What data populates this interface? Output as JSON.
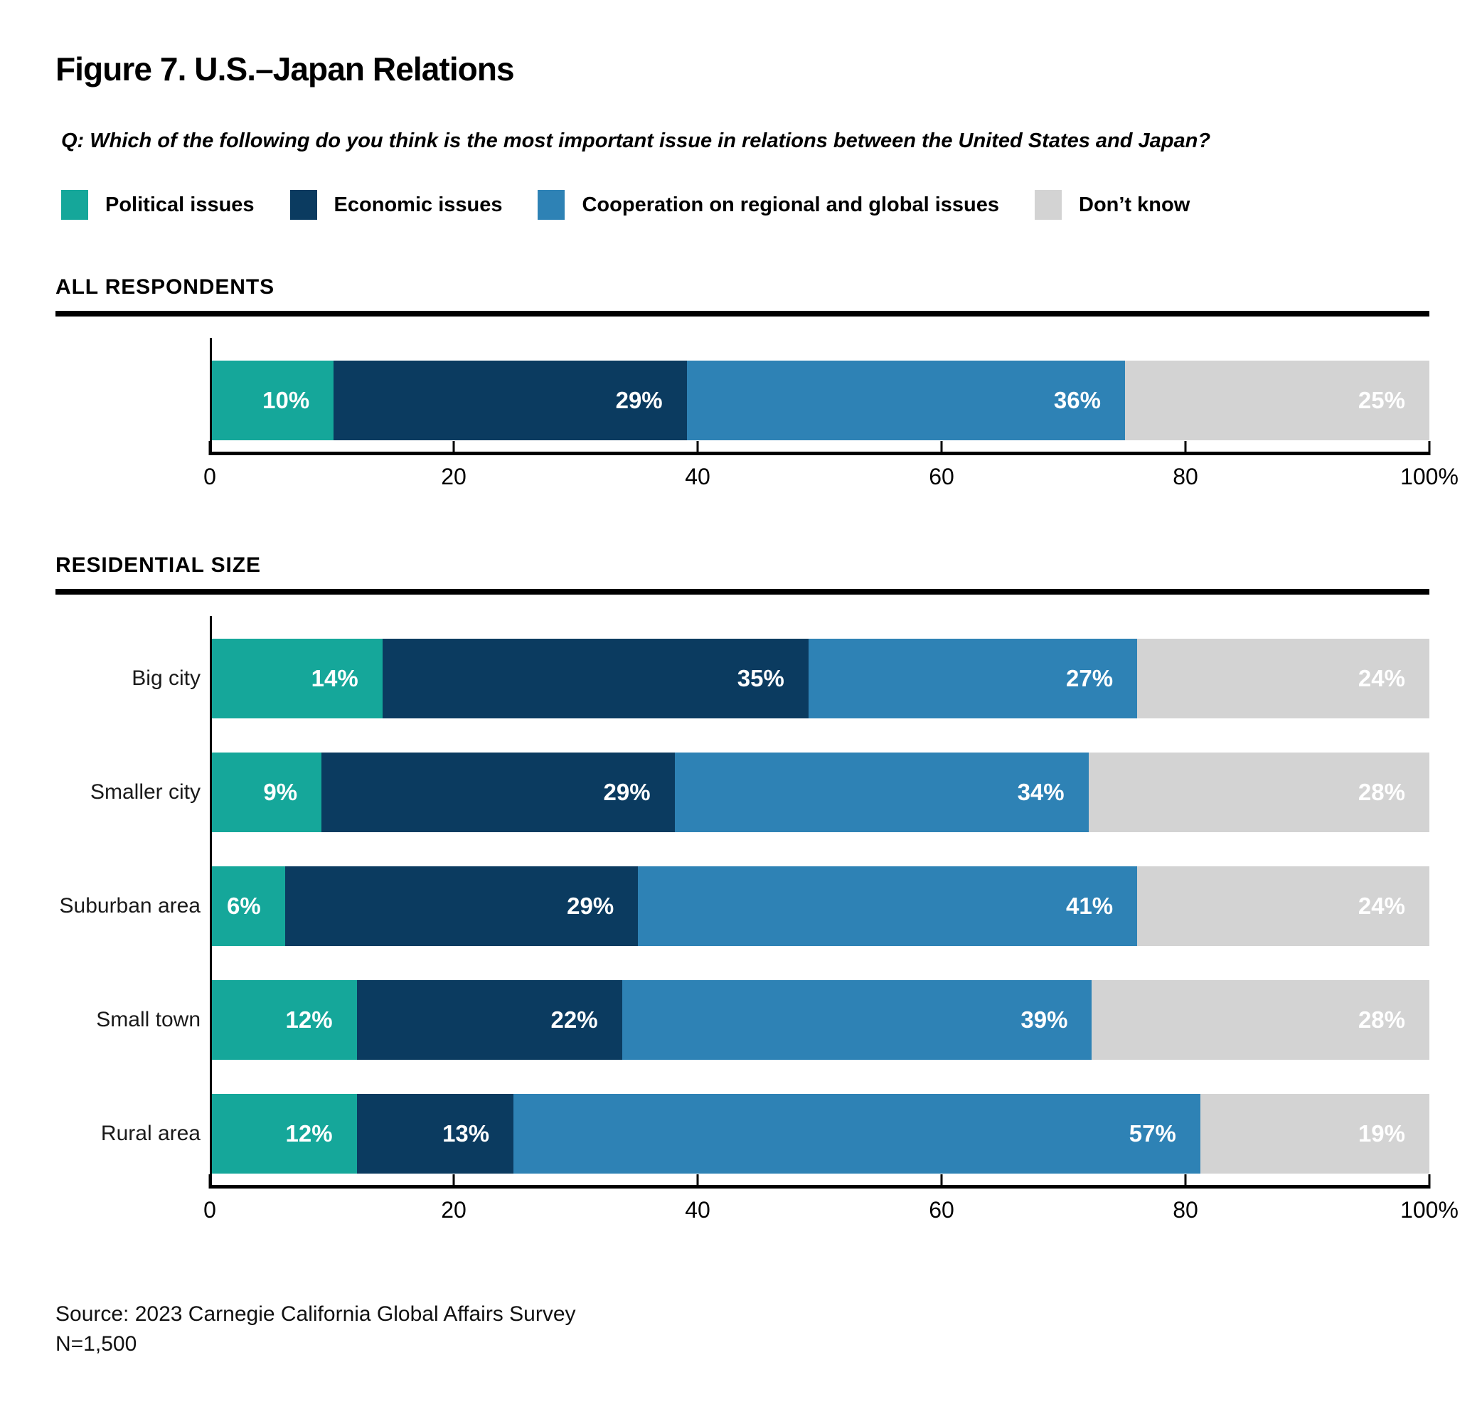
{
  "figure": {
    "title": "Figure 7. U.S.–Japan Relations",
    "question": "Q: Which of the following do you think is the most important issue in relations between the United States and Japan?",
    "source": "Source: 2023 Carnegie California Global Affairs Survey",
    "sample_size": "N=1,500"
  },
  "colors": {
    "political": "#15A79A",
    "economic": "#0B3B60",
    "cooperation": "#2E82B5",
    "dont_know": "#D3D3D3",
    "axis": "#000000"
  },
  "legend": [
    {
      "label": "Political issues",
      "color": "#15A79A"
    },
    {
      "label": "Economic issues",
      "color": "#0B3B60"
    },
    {
      "label": "Cooperation on regional and global issues",
      "color": "#2E82B5"
    },
    {
      "label": "Don’t know",
      "color": "#D3D3D3"
    }
  ],
  "chart_data": [
    {
      "type": "bar",
      "orientation": "horizontal",
      "stacked": true,
      "title": "ALL RESPONDENTS",
      "section": "ALL RESPONDENTS",
      "categories": [
        ""
      ],
      "series": [
        {
          "name": "Political issues",
          "color": "#15A79A",
          "values": [
            10
          ]
        },
        {
          "name": "Economic issues",
          "color": "#0B3B60",
          "values": [
            29
          ]
        },
        {
          "name": "Cooperation on regional and global issues",
          "color": "#2E82B5",
          "values": [
            36
          ]
        },
        {
          "name": "Don’t know",
          "color": "#D3D3D3",
          "values": [
            25
          ]
        }
      ],
      "x_ticks": [
        "0",
        "20",
        "40",
        "60",
        "80",
        "100%"
      ],
      "xlim": [
        0,
        100
      ],
      "grid": false,
      "legend_position": "top",
      "value_label_format": "{v}%"
    },
    {
      "type": "bar",
      "orientation": "horizontal",
      "stacked": true,
      "title": "RESIDENTIAL SIZE",
      "section": "RESIDENTIAL SIZE",
      "categories": [
        "Big city",
        "Smaller city",
        "Suburban area",
        "Small town",
        "Rural area"
      ],
      "series": [
        {
          "name": "Political issues",
          "color": "#15A79A",
          "values": [
            14,
            9,
            6,
            12,
            12
          ]
        },
        {
          "name": "Economic issues",
          "color": "#0B3B60",
          "values": [
            35,
            29,
            29,
            22,
            13
          ]
        },
        {
          "name": "Cooperation on regional and global issues",
          "color": "#2E82B5",
          "values": [
            27,
            34,
            41,
            39,
            57
          ]
        },
        {
          "name": "Don’t know",
          "color": "#D3D3D3",
          "values": [
            24,
            28,
            24,
            28,
            19
          ]
        }
      ],
      "x_ticks": [
        "0",
        "20",
        "40",
        "60",
        "80",
        "100%"
      ],
      "xlim": [
        0,
        100
      ],
      "grid": false,
      "legend_position": "top",
      "value_label_format": "{v}%"
    }
  ]
}
